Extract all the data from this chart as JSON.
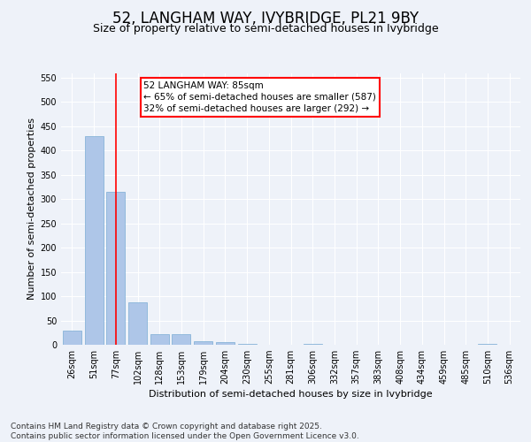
{
  "title": "52, LANGHAM WAY, IVYBRIDGE, PL21 9BY",
  "subtitle": "Size of property relative to semi-detached houses in Ivybridge",
  "xlabel": "Distribution of semi-detached houses by size in Ivybridge",
  "ylabel": "Number of semi-detached properties",
  "categories": [
    "26sqm",
    "51sqm",
    "77sqm",
    "102sqm",
    "128sqm",
    "153sqm",
    "179sqm",
    "204sqm",
    "230sqm",
    "255sqm",
    "281sqm",
    "306sqm",
    "332sqm",
    "357sqm",
    "383sqm",
    "408sqm",
    "434sqm",
    "459sqm",
    "485sqm",
    "510sqm",
    "536sqm"
  ],
  "values": [
    30,
    430,
    315,
    88,
    22,
    22,
    8,
    5,
    2,
    0,
    0,
    1,
    0,
    0,
    0,
    0,
    0,
    0,
    0,
    1,
    0
  ],
  "bar_color": "#aec6e8",
  "bar_edgecolor": "#7aadd4",
  "redline_index": 2,
  "redline_label": "52 LANGHAM WAY: 85sqm",
  "annotation_line1": "← 65% of semi-detached houses are smaller (587)",
  "annotation_line2": "32% of semi-detached houses are larger (292) →",
  "ylim": [
    0,
    560
  ],
  "yticks": [
    0,
    50,
    100,
    150,
    200,
    250,
    300,
    350,
    400,
    450,
    500,
    550
  ],
  "footer": "Contains HM Land Registry data © Crown copyright and database right 2025.\nContains public sector information licensed under the Open Government Licence v3.0.",
  "bg_color": "#eef2f9",
  "plot_bg_color": "#eef2f9",
  "grid_color": "#ffffff",
  "title_fontsize": 12,
  "subtitle_fontsize": 9,
  "axis_label_fontsize": 8,
  "tick_fontsize": 7,
  "footer_fontsize": 6.5,
  "annotation_fontsize": 7.5
}
